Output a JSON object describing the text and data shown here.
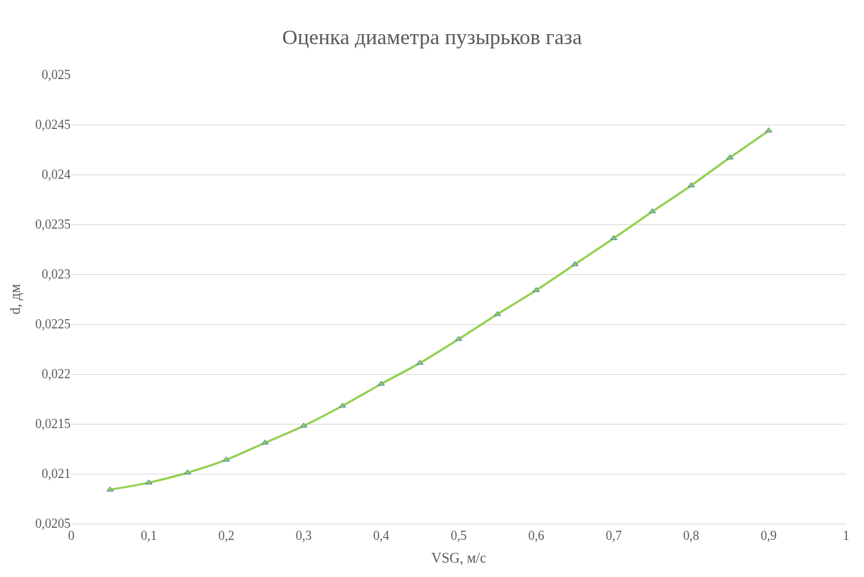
{
  "chart_data": {
    "type": "line",
    "title": "Оценка диаметра пузырьков газа",
    "xlabel": "VSG, м/с",
    "ylabel": "d, дм",
    "x": [
      0.05,
      0.1,
      0.15,
      0.2,
      0.25,
      0.3,
      0.35,
      0.4,
      0.45,
      0.5,
      0.55,
      0.6,
      0.65,
      0.7,
      0.75,
      0.8,
      0.85,
      0.9
    ],
    "series": [
      {
        "color": "#92d050",
        "values": [
          0.02084,
          0.02091,
          0.02101,
          0.02114,
          0.02131,
          0.02148,
          0.02168,
          0.0219,
          0.02211,
          0.02235,
          0.0226,
          0.02284,
          0.0231,
          0.02336,
          0.02363,
          0.02389,
          0.02417,
          0.02444
        ]
      }
    ],
    "marker": "triangle",
    "grid": "y",
    "xlim": [
      0,
      1
    ],
    "xticks": [
      0,
      {
        "value": 0.1,
        "label": "0,1"
      },
      {
        "value": 0.2,
        "label": "0,2"
      },
      {
        "value": 0.3,
        "label": "0,3"
      },
      {
        "value": 0.4,
        "label": "0,4"
      },
      {
        "value": 0.5,
        "label": "0,5"
      },
      {
        "value": 0.6,
        "label": "0,6"
      },
      {
        "value": 0.7,
        "label": "0,7"
      },
      {
        "value": 0.8,
        "label": "0,8"
      },
      {
        "value": 0.9,
        "label": "0,9"
      },
      1
    ],
    "ylim": [
      0.0205,
      0.025
    ],
    "yticks": [
      {
        "value": 0.0205,
        "label": "0,0205"
      },
      {
        "value": 0.021,
        "label": "0,021"
      },
      {
        "value": 0.0215,
        "label": "0,0215"
      },
      {
        "value": 0.022,
        "label": "0,022"
      },
      {
        "value": 0.0225,
        "label": "0,0225"
      },
      {
        "value": 0.023,
        "label": "0,023"
      },
      {
        "value": 0.0235,
        "label": "0,0235"
      },
      {
        "value": 0.024,
        "label": "0,024"
      },
      {
        "value": 0.0245,
        "label": "0,0245"
      },
      {
        "value": 0.025,
        "label": "0,025"
      }
    ]
  }
}
